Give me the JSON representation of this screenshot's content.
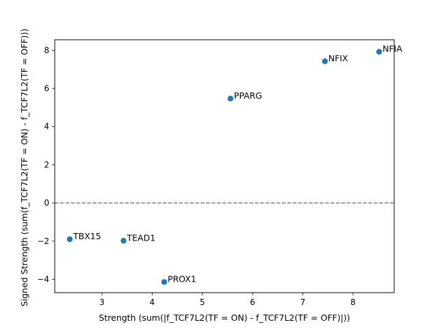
{
  "chart_data": {
    "type": "scatter",
    "title": "",
    "xlabel": "Strength (sum(|f_TCF7L2(TF = ON) - f_TCF7L2(TF = OFF)|))",
    "ylabel": "Signed Strength (sum(f_TCF7L2(TF = ON) - f_TCF7L2(TF = OFF)))",
    "xlim": [
      2.06,
      8.82
    ],
    "ylim": [
      -4.7,
      8.55
    ],
    "xticks": [
      3,
      4,
      5,
      6,
      7,
      8
    ],
    "yticks": [
      -4,
      -2,
      0,
      2,
      4,
      6,
      8
    ],
    "grid": false,
    "marker_color": "#1f77b4",
    "reference_line": {
      "y": 0,
      "style": "dashed",
      "color": "#808080"
    },
    "points": [
      {
        "label": "NFIA",
        "x": 8.52,
        "y": 7.92
      },
      {
        "label": "NFIX",
        "x": 7.44,
        "y": 7.42
      },
      {
        "label": "PPARG",
        "x": 5.56,
        "y": 5.47
      },
      {
        "label": "TBX15",
        "x": 2.36,
        "y": -1.9
      },
      {
        "label": "TEAD1",
        "x": 3.43,
        "y": -1.98
      },
      {
        "label": "PROX1",
        "x": 4.24,
        "y": -4.14
      }
    ]
  }
}
